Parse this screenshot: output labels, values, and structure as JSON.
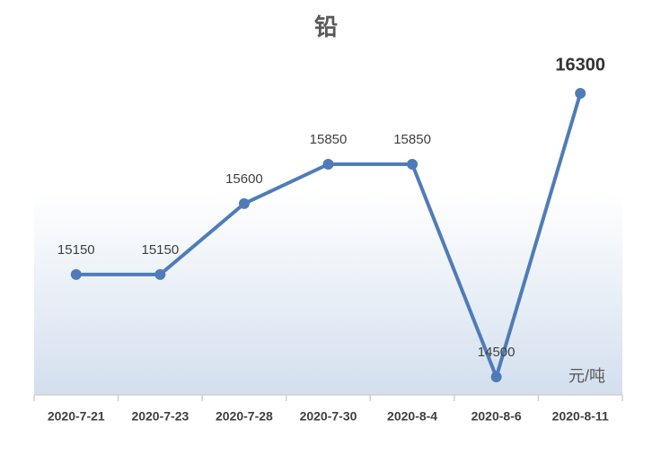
{
  "chart_data": {
    "type": "line",
    "title": "铅",
    "unit": "元/吨",
    "categories": [
      "2020-7-21",
      "2020-7-23",
      "2020-7-28",
      "2020-7-30",
      "2020-8-4",
      "2020-8-6",
      "2020-8-11"
    ],
    "series": [
      {
        "name": "铅",
        "color": "#4f7cb8",
        "values": [
          15150,
          15150,
          15600,
          15850,
          15850,
          14500,
          16300
        ]
      }
    ]
  }
}
